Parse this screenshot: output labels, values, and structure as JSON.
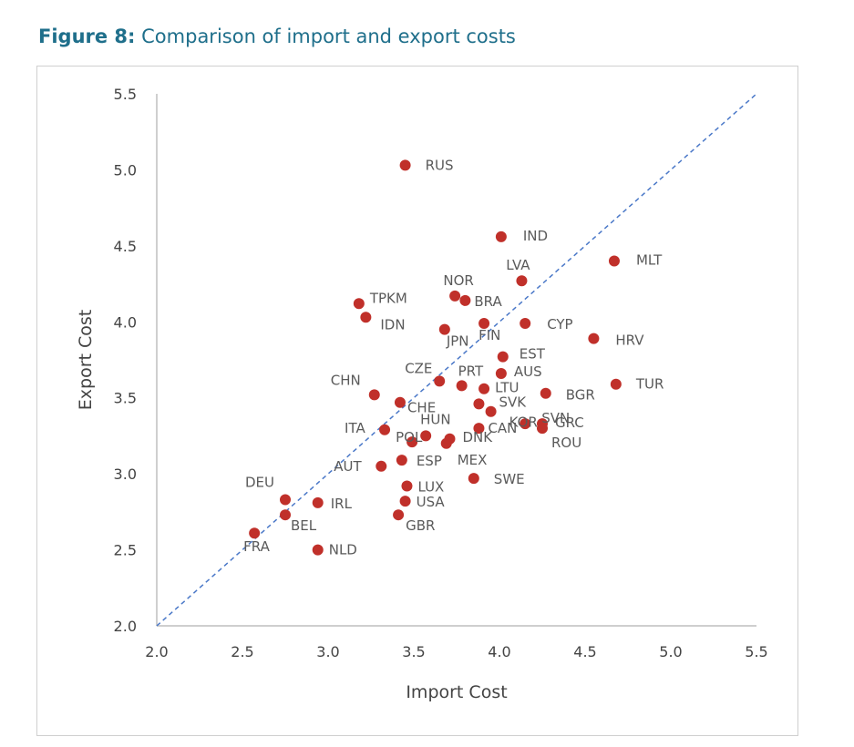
{
  "figure": {
    "number": "Figure 8:",
    "caption": "Comparison of import and export costs"
  },
  "colors": {
    "title": "#1f6f8b",
    "point": "#c0302a",
    "reference_line": "#4a78c8",
    "axis": "#bfbfbf"
  },
  "chart_data": {
    "type": "scatter",
    "xlabel": "Import Cost",
    "ylabel": "Export Cost",
    "xlim": [
      2.0,
      5.5
    ],
    "ylim": [
      2.0,
      5.5
    ],
    "xticks": [
      "2.0",
      "2.5",
      "3.0",
      "3.5",
      "4.0",
      "4.5",
      "5.0",
      "5.5"
    ],
    "yticks": [
      "2.0",
      "2.5",
      "3.0",
      "3.5",
      "4.0",
      "4.5",
      "5.0",
      "5.5"
    ],
    "grid": false,
    "reference_line": {
      "style": "dashed",
      "from": [
        2.0,
        2.0
      ],
      "to": [
        5.5,
        5.5
      ]
    },
    "points": [
      {
        "label": "RUS",
        "x": 3.45,
        "y": 5.03
      },
      {
        "label": "IND",
        "x": 4.01,
        "y": 4.56
      },
      {
        "label": "MLT",
        "x": 4.67,
        "y": 4.4
      },
      {
        "label": "LVA",
        "x": 4.13,
        "y": 4.27
      },
      {
        "label": "NOR",
        "x": 3.74,
        "y": 4.17
      },
      {
        "label": "BRA",
        "x": 3.8,
        "y": 4.14
      },
      {
        "label": "TPKM",
        "x": 3.18,
        "y": 4.12
      },
      {
        "label": "IDN",
        "x": 3.22,
        "y": 4.03
      },
      {
        "label": "JPN",
        "x": 3.68,
        "y": 3.95
      },
      {
        "label": "FIN",
        "x": 3.91,
        "y": 3.99
      },
      {
        "label": "CYP",
        "x": 4.15,
        "y": 3.99
      },
      {
        "label": "HRV",
        "x": 4.55,
        "y": 3.89
      },
      {
        "label": "EST",
        "x": 4.02,
        "y": 3.77
      },
      {
        "label": "AUS",
        "x": 4.01,
        "y": 3.66
      },
      {
        "label": "CZE",
        "x": 3.65,
        "y": 3.61
      },
      {
        "label": "PRT",
        "x": 3.78,
        "y": 3.58
      },
      {
        "label": "TUR",
        "x": 4.68,
        "y": 3.59
      },
      {
        "label": "LTU",
        "x": 3.91,
        "y": 3.56
      },
      {
        "label": "BGR",
        "x": 4.27,
        "y": 3.53
      },
      {
        "label": "CHN",
        "x": 3.27,
        "y": 3.52
      },
      {
        "label": "CHE",
        "x": 3.42,
        "y": 3.47
      },
      {
        "label": "SVK",
        "x": 3.88,
        "y": 3.46
      },
      {
        "label": "KOR",
        "x": 3.95,
        "y": 3.41
      },
      {
        "label": "SVN",
        "x": 4.15,
        "y": 3.33
      },
      {
        "label": "GRC",
        "x": 4.25,
        "y": 3.33
      },
      {
        "label": "ROU",
        "x": 4.25,
        "y": 3.3
      },
      {
        "label": "CAN",
        "x": 3.88,
        "y": 3.3
      },
      {
        "label": "ITA",
        "x": 3.33,
        "y": 3.29
      },
      {
        "label": "HUN",
        "x": 3.57,
        "y": 3.25
      },
      {
        "label": "POL",
        "x": 3.49,
        "y": 3.21
      },
      {
        "label": "DNK",
        "x": 3.71,
        "y": 3.23
      },
      {
        "label": "MEX",
        "x": 3.69,
        "y": 3.2
      },
      {
        "label": "ESP",
        "x": 3.43,
        "y": 3.09
      },
      {
        "label": "AUT",
        "x": 3.31,
        "y": 3.05
      },
      {
        "label": "SWE",
        "x": 3.85,
        "y": 2.97
      },
      {
        "label": "LUX",
        "x": 3.46,
        "y": 2.92
      },
      {
        "label": "DEU",
        "x": 2.75,
        "y": 2.83
      },
      {
        "label": "IRL",
        "x": 2.94,
        "y": 2.81
      },
      {
        "label": "USA",
        "x": 3.45,
        "y": 2.82
      },
      {
        "label": "BEL",
        "x": 2.75,
        "y": 2.73
      },
      {
        "label": "GBR",
        "x": 3.41,
        "y": 2.73
      },
      {
        "label": "FRA",
        "x": 2.57,
        "y": 2.61
      },
      {
        "label": "NLD",
        "x": 2.94,
        "y": 2.5
      }
    ]
  }
}
